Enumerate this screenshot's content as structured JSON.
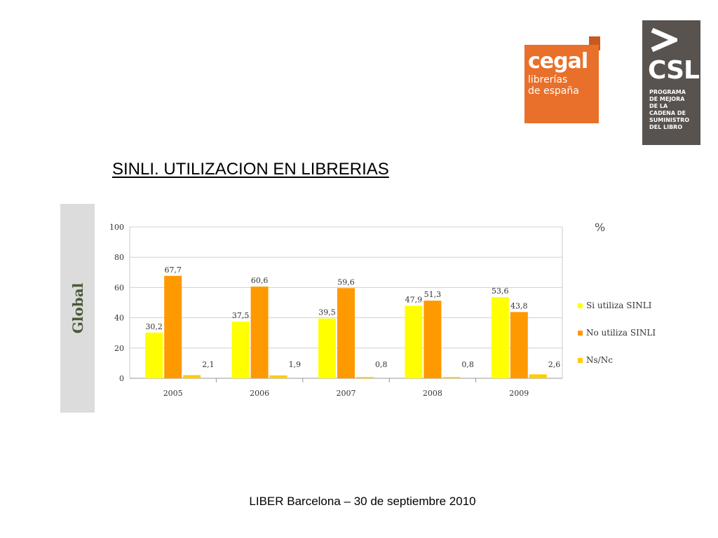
{
  "slide": {
    "title": "SINLI. UTILIZACION EN LIBRERIAS",
    "side_label": "Global",
    "footer": "LIBER Barcelona – 30 de septiembre 2010"
  },
  "logos": {
    "cegal": {
      "brand": "cegal",
      "line1": "librerías",
      "line2": "de españa",
      "color": "#e8702a"
    },
    "csl": {
      "mark": "CSL",
      "lines": [
        "PROGRAMA",
        "DE MEJORA",
        "DE LA",
        "CADENA DE",
        "SUMINISTRO",
        "DEL LIBRO"
      ],
      "color": "#58534f"
    }
  },
  "chart_data": {
    "type": "bar",
    "title": "",
    "unit_label": "%",
    "categories": [
      "2005",
      "2006",
      "2007",
      "2008",
      "2009"
    ],
    "series": [
      {
        "name": "Si utiliza SINLI",
        "values": [
          30.2,
          37.5,
          39.5,
          47.9,
          53.6
        ],
        "labels": [
          "30,2",
          "37,5",
          "39,5",
          "47,9",
          "53,6"
        ],
        "color": "#ffff00"
      },
      {
        "name": "No utiliza SINLI",
        "values": [
          67.7,
          60.6,
          59.6,
          51.3,
          43.8
        ],
        "labels": [
          "67,7",
          "60,6",
          "59,6",
          "51,3",
          "43,8"
        ],
        "color": "#ff9900"
      },
      {
        "name": "Ns/Nc",
        "values": [
          2.1,
          1.9,
          0.8,
          0.8,
          2.6
        ],
        "labels": [
          "2,1",
          "1,9",
          "0,8",
          "0,8",
          "2,6"
        ],
        "color": "#ffcc00"
      }
    ],
    "ylim": [
      0,
      100
    ],
    "yticks": [
      0,
      20,
      40,
      60,
      80,
      100
    ],
    "grid": true,
    "legend": "right"
  }
}
